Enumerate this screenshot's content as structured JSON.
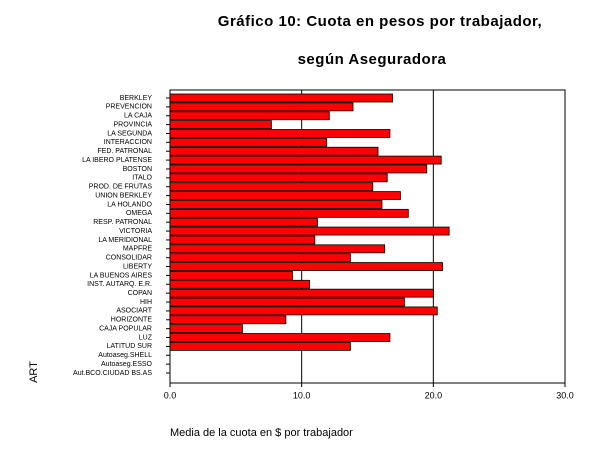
{
  "chart_data": {
    "type": "hbar",
    "title": "Gráfico 10: Cuota en pesos por trabajador,",
    "subtitle": "según Aseguradora",
    "x_label": "Media de la cuota en $ por trabajador",
    "y_label": "ART",
    "categories": [
      "BERKLEY",
      "PREVENCION",
      "LA CAJA",
      "PROVINCIA",
      "LA SEGUNDA",
      "INTERACCION",
      "FED. PATRONAL",
      "LA IBERO PLATENSE",
      "BOSTON",
      "ITALO",
      "PROD. DE FRUTAS",
      "UNION BERKLEY",
      "LA HOLANDO",
      "OMEGA",
      "RESP. PATRONAL",
      "VICTORIA",
      "LA MERIDIONAL",
      "MAPFRE",
      "CONSOLIDAR",
      "LIBERTY",
      "LA BUENOS AIRES",
      "INST. AUTARQ. E.R.",
      "COPAN",
      "HIH",
      "ASOCIART",
      "HORIZONTE",
      "CAJA POPULAR",
      "LUZ",
      "LATITUD SUR",
      "Autoaseg.SHELL",
      "Autoaseg.ESSO",
      "Aut.BCO.CIUDAD BS.AS"
    ],
    "values": [
      16.9,
      13.9,
      12.1,
      7.7,
      16.7,
      11.9,
      15.8,
      20.6,
      19.5,
      16.5,
      15.4,
      17.5,
      16.1,
      18.1,
      11.2,
      21.2,
      11.0,
      16.3,
      13.7,
      20.7,
      9.3,
      10.6,
      20.0,
      17.8,
      20.3,
      8.8,
      5.5,
      16.7,
      13.7,
      0,
      0,
      0
    ],
    "color": "#ff0000",
    "xlim": [
      0,
      30
    ],
    "xticks": [
      {
        "value": 0,
        "label": "0.0"
      },
      {
        "value": 10,
        "label": "10.0"
      },
      {
        "value": 20,
        "label": "20.0"
      },
      {
        "value": 30,
        "label": "30.0"
      }
    ],
    "grid": true
  }
}
